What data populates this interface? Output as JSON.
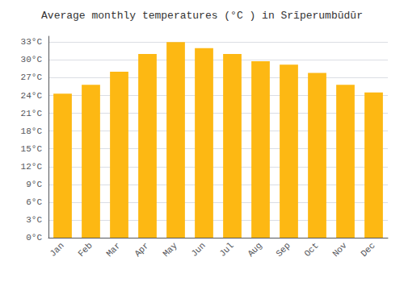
{
  "chart_data": {
    "type": "bar",
    "title": "Average monthly temperatures (°C ) in Srīperumbūdūr",
    "categories": [
      "Jan",
      "Feb",
      "Mar",
      "Apr",
      "May",
      "Jun",
      "Jul",
      "Aug",
      "Sep",
      "Oct",
      "Nov",
      "Dec"
    ],
    "values": [
      24.3,
      25.8,
      28.0,
      31.0,
      33.0,
      32.0,
      31.0,
      29.8,
      29.2,
      27.8,
      25.8,
      24.5
    ],
    "color": "#FDB813",
    "ylim": [
      0,
      34
    ],
    "yticks": [
      {
        "value": 0,
        "label": "0°C"
      },
      {
        "value": 3,
        "label": "3°C"
      },
      {
        "value": 6,
        "label": "6°C"
      },
      {
        "value": 9,
        "label": "9°C"
      },
      {
        "value": 12,
        "label": "12°C"
      },
      {
        "value": 15,
        "label": "15°C"
      },
      {
        "value": 18,
        "label": "18°C"
      },
      {
        "value": 21,
        "label": "21°C"
      },
      {
        "value": 24,
        "label": "24°C"
      },
      {
        "value": 27,
        "label": "27°C"
      },
      {
        "value": 30,
        "label": "30°C"
      },
      {
        "value": 33,
        "label": "33°C"
      }
    ],
    "grid": true
  }
}
